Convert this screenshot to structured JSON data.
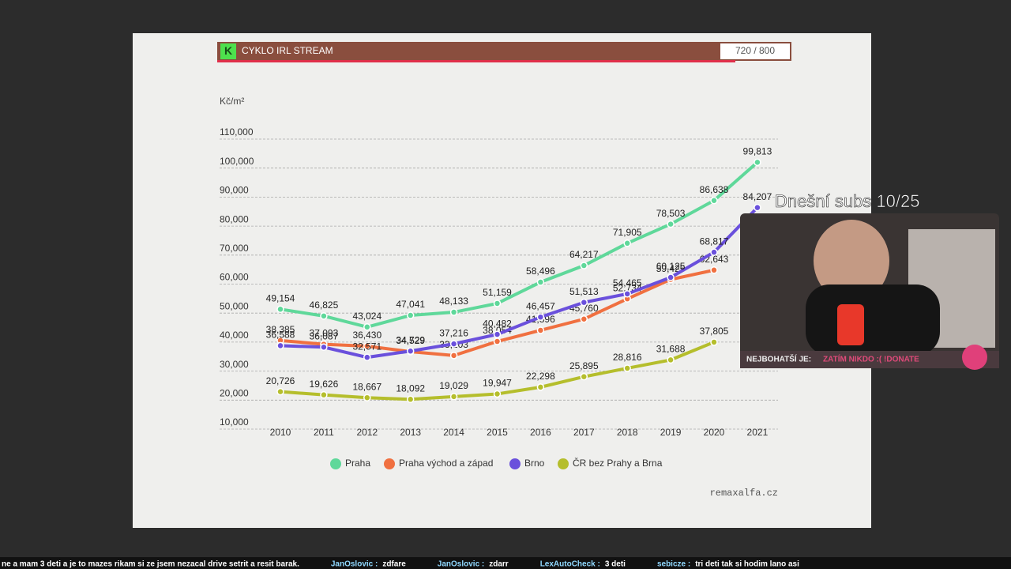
{
  "header": {
    "title": "CYKLO IRL STREAM",
    "counter": "720 / 800"
  },
  "chart_data": {
    "type": "line",
    "y_unit": "Kč/m²",
    "source": "remaxalfa.cz",
    "categories": [
      "2010",
      "2011",
      "2012",
      "2013",
      "2014",
      "2015",
      "2016",
      "2017",
      "2018",
      "2019",
      "2020",
      "2021"
    ],
    "ylim": [
      10000,
      110000
    ],
    "yticks": [
      {
        "value": 10000,
        "label": "10,000"
      },
      {
        "value": 20000,
        "label": "20,000"
      },
      {
        "value": 30000,
        "label": "30,000"
      },
      {
        "value": 40000,
        "label": "40,000"
      },
      {
        "value": 50000,
        "label": "50,000"
      },
      {
        "value": 60000,
        "label": "60,000"
      },
      {
        "value": 70000,
        "label": "70,000"
      },
      {
        "value": 80000,
        "label": "80,000"
      },
      {
        "value": 90000,
        "label": "90,000"
      },
      {
        "value": 100000,
        "label": "100,000"
      },
      {
        "value": 110000,
        "label": "110,000"
      }
    ],
    "grid": true,
    "series": [
      {
        "name": "Praha",
        "color": "#5fd89a",
        "values": [
          49154,
          46825,
          43024,
          47041,
          48133,
          51159,
          58496,
          64217,
          71905,
          78503,
          86638,
          99813
        ],
        "value_labels": [
          "49,154",
          "46,825",
          "43,024",
          "47,041",
          "48,133",
          "51,159",
          "58,496",
          "64,217",
          "71,905",
          "78,503",
          "86,638",
          "99,813"
        ]
      },
      {
        "name": "Praha východ a západ",
        "color": "#f07040",
        "values": [
          38385,
          37093,
          36430,
          34529,
          33203,
          38054,
          41896,
          45760,
          52734,
          59425,
          62643,
          null
        ],
        "value_labels": [
          "38,385",
          "37,093",
          "36,430",
          "34,529",
          "33,203",
          "38,054",
          "41,896",
          "45,760",
          "52,734",
          "59,425",
          "62,643",
          null
        ]
      },
      {
        "name": "Brno",
        "color": "#6a50dc",
        "values": [
          36588,
          36087,
          32571,
          34729,
          37216,
          40482,
          46457,
          51513,
          54465,
          60125,
          68817,
          84207
        ],
        "value_labels": [
          "36,588",
          "36,087",
          "32,571",
          "34,729",
          "37,216",
          "40,482",
          "46,457",
          "51,513",
          "54,465",
          "60,125",
          "68,817",
          "84,207"
        ]
      },
      {
        "name": "ČR bez Prahy a Brna",
        "color": "#b5be2c",
        "values": [
          20726,
          19626,
          18667,
          18092,
          19029,
          19947,
          22298,
          25895,
          28816,
          31688,
          37805,
          null
        ],
        "value_labels": [
          "20,726",
          "19,626",
          "18,667",
          "18,092",
          "19,029",
          "19,947",
          "22,298",
          "25,895",
          "28,816",
          "31,688",
          "37,805",
          null
        ]
      }
    ]
  },
  "overlay": {
    "subs": "Dnešní subs 10/25",
    "richest_label": "NEJBOHATŠÍ JE:",
    "richest_value": "ZATÍM NIKDO :( !DONATE"
  },
  "chat": [
    "ne a mam 3 deti a je to mazes rikam si ze jsem nezacal drive setrit a resit barak.",
    "JanOslovic :",
    "zdfare",
    "JanOslovic :",
    "zdarr",
    "LexAutoCheck :",
    "3 deti",
    "sebicze :",
    "tri deti tak si hodim lano asi"
  ]
}
